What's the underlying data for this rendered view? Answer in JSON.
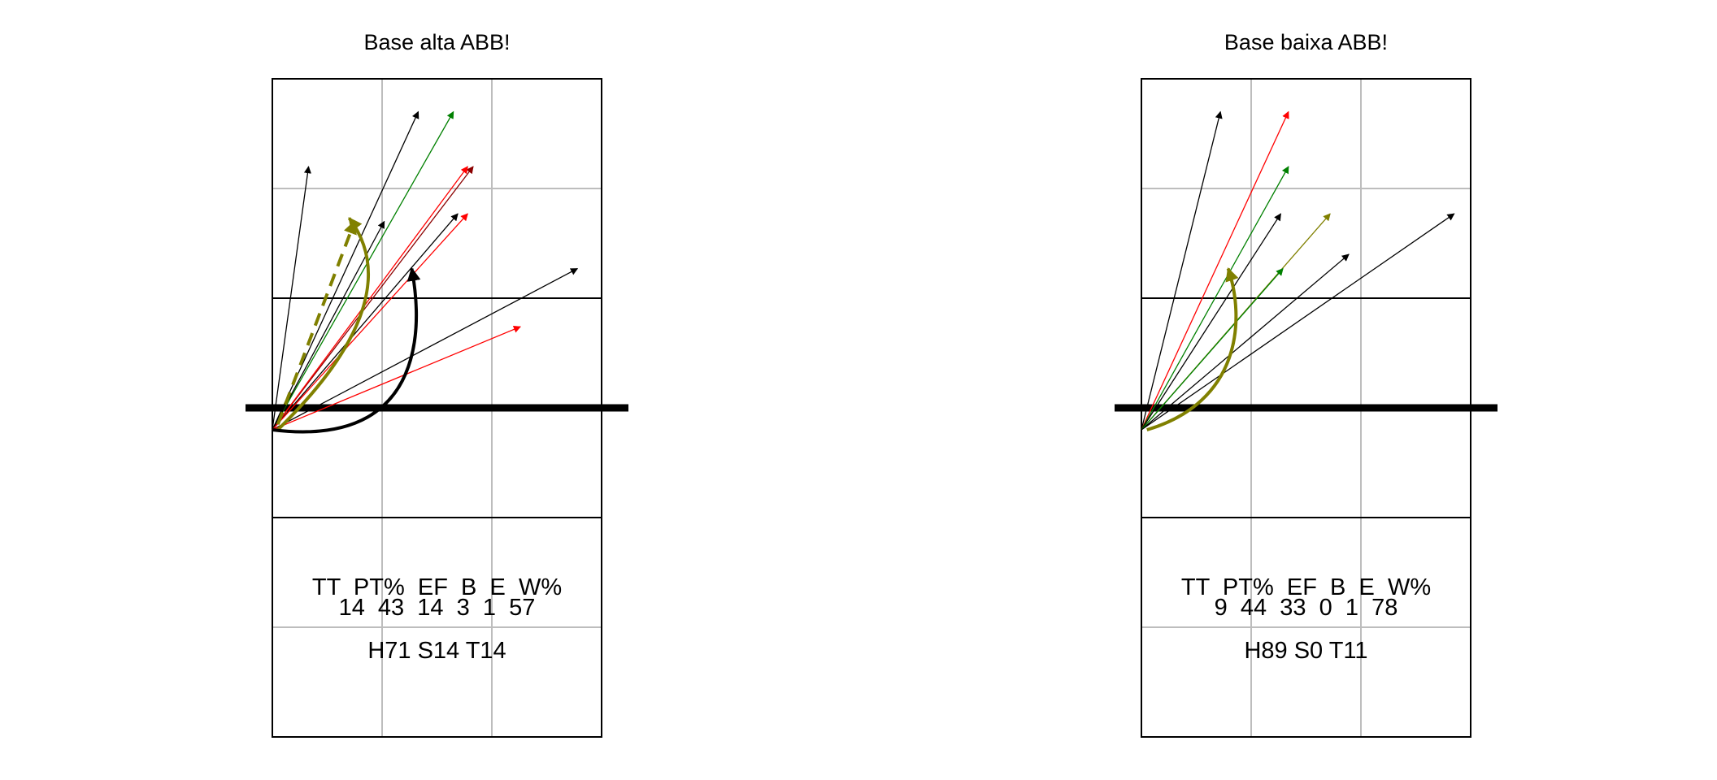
{
  "chart_data": [
    {
      "type": "court_arrow_chart",
      "title": "Base alta ABB!",
      "stats_header": "TT  PT%  EF  B  E  W%",
      "stats_values": "14  43  14  3  1  57",
      "summary": "H71 S14 T14",
      "court": {
        "x_range": [
          0,
          3
        ],
        "y_range": [
          0,
          6
        ],
        "net_y": 3
      },
      "arrows": [
        {
          "from": [
            0.0,
            2.8
          ],
          "to": [
            0.33,
            5.2
          ],
          "color": "#000000"
        },
        {
          "from": [
            0.0,
            2.8
          ],
          "to": [
            1.33,
            5.7
          ],
          "color": "#000000"
        },
        {
          "from": [
            0.0,
            2.8
          ],
          "to": [
            1.65,
            5.7
          ],
          "color": "#008000"
        },
        {
          "from": [
            0.0,
            2.8
          ],
          "to": [
            1.83,
            5.2
          ],
          "color": "#8B0000"
        },
        {
          "from": [
            0.0,
            2.8
          ],
          "to": [
            1.78,
            5.2
          ],
          "color": "#FF0000"
        },
        {
          "from": [
            0.0,
            2.8
          ],
          "to": [
            1.02,
            4.7
          ],
          "color": "#000000"
        },
        {
          "from": [
            0.0,
            2.8
          ],
          "to": [
            1.69,
            4.77
          ],
          "color": "#000000"
        },
        {
          "from": [
            0.0,
            2.8
          ],
          "to": [
            1.78,
            4.77
          ],
          "color": "#FF0000"
        },
        {
          "from": [
            0.0,
            2.8
          ],
          "to": [
            2.78,
            4.27
          ],
          "color": "#000000"
        },
        {
          "from": [
            0.0,
            2.8
          ],
          "to": [
            2.26,
            3.74
          ],
          "color": "#FF0000"
        }
      ],
      "thick_arrows": [
        {
          "path": [
            [
              0.05,
              2.8
            ],
            [
              0.35,
              3.1
            ],
            [
              1.25,
              4.0
            ],
            [
              0.7,
              4.73
            ]
          ],
          "color": "#808000",
          "dashed": false
        },
        {
          "path": [
            [
              0.05,
              2.85
            ],
            [
              0.75,
              4.7
            ]
          ],
          "color": "#808000",
          "dashed": true
        },
        {
          "path": [
            [
              0.0,
              2.8
            ],
            [
              1.6,
              2.6
            ],
            [
              1.3,
              4.1
            ],
            [
              1.27,
              4.27
            ]
          ],
          "color": "#000000",
          "dashed": false
        }
      ]
    },
    {
      "type": "court_arrow_chart",
      "title": "Base baixa ABB!",
      "stats_header": "TT  PT%  EF  B  E  W%",
      "stats_values": "9  44  33  0  1  78",
      "summary": "H89 S0 T11",
      "court": {
        "x_range": [
          0,
          3
        ],
        "y_range": [
          0,
          6
        ],
        "net_y": 3
      },
      "arrows": [
        {
          "from": [
            0.0,
            2.8
          ],
          "to": [
            0.72,
            5.7
          ],
          "color": "#000000"
        },
        {
          "from": [
            0.0,
            2.8
          ],
          "to": [
            1.34,
            5.7
          ],
          "color": "#FF0000"
        },
        {
          "from": [
            0.0,
            2.8
          ],
          "to": [
            1.34,
            5.2
          ],
          "color": "#008000"
        },
        {
          "from": [
            0.0,
            2.8
          ],
          "to": [
            1.27,
            4.77
          ],
          "color": "#000000"
        },
        {
          "from": [
            0.0,
            2.8
          ],
          "to": [
            1.72,
            4.77
          ],
          "color": "#808000"
        },
        {
          "from": [
            0.0,
            2.8
          ],
          "to": [
            1.89,
            4.4
          ],
          "color": "#000000"
        },
        {
          "from": [
            0.0,
            2.8
          ],
          "to": [
            1.29,
            4.27
          ],
          "color": "#008000"
        },
        {
          "from": [
            0.0,
            2.8
          ],
          "to": [
            2.85,
            4.77
          ],
          "color": "#000000"
        }
      ],
      "thick_arrows": [
        {
          "path": [
            [
              0.05,
              2.8
            ],
            [
              0.9,
              3.05
            ],
            [
              0.95,
              3.8
            ],
            [
              0.79,
              4.27
            ]
          ],
          "color": "#808000",
          "dashed": false
        }
      ]
    }
  ]
}
